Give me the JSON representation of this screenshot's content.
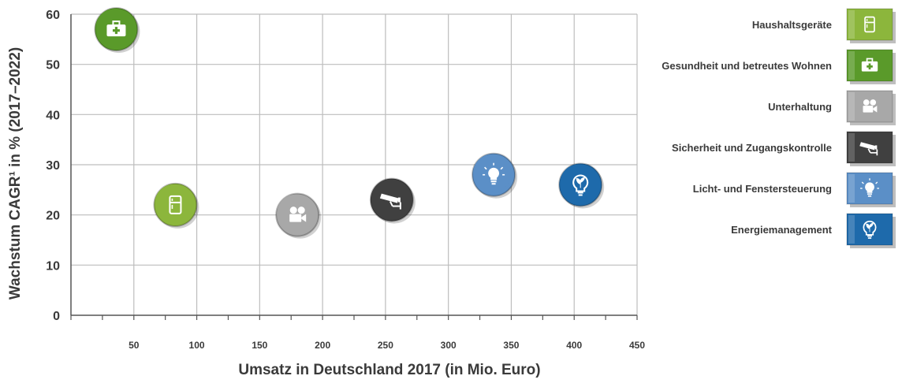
{
  "chart_data": {
    "type": "scatter",
    "xlabel": "Umsatz in Deutschland 2017 (in Mio. Euro)",
    "ylabel": "Wachstum CAGR¹ in % (2017–2022)",
    "xlim": [
      0,
      450
    ],
    "ylim": [
      0,
      60
    ],
    "x_ticks": [
      "50",
      "100",
      "150",
      "200",
      "250",
      "300",
      "350",
      "400",
      "450"
    ],
    "y_ticks": [
      "0",
      "10",
      "20",
      "30",
      "40",
      "50",
      "60"
    ],
    "grid": true,
    "legend_position": "right",
    "series": [
      {
        "name": "Haushaltsgeräte",
        "x": 83,
        "y": 22,
        "color": "#8cb63c",
        "icon": "refrigerator-icon"
      },
      {
        "name": "Gesundheit und betreutes Wohnen",
        "x": 36,
        "y": 57,
        "color": "#5a9a2a",
        "icon": "first-aid-kit-icon"
      },
      {
        "name": "Unterhaltung",
        "x": 180,
        "y": 20,
        "color": "#a8a8a8",
        "icon": "video-camera-icon"
      },
      {
        "name": "Sicherheit und Zugangskontrolle",
        "x": 255,
        "y": 23,
        "color": "#404040",
        "icon": "security-camera-icon"
      },
      {
        "name": "Licht- und Fenstersteuerung",
        "x": 336,
        "y": 28,
        "color": "#5b8fc7",
        "icon": "light-bulb-icon"
      },
      {
        "name": "Energiemanagement",
        "x": 405,
        "y": 26,
        "color": "#1e6aab",
        "icon": "eco-bulb-icon"
      }
    ]
  }
}
